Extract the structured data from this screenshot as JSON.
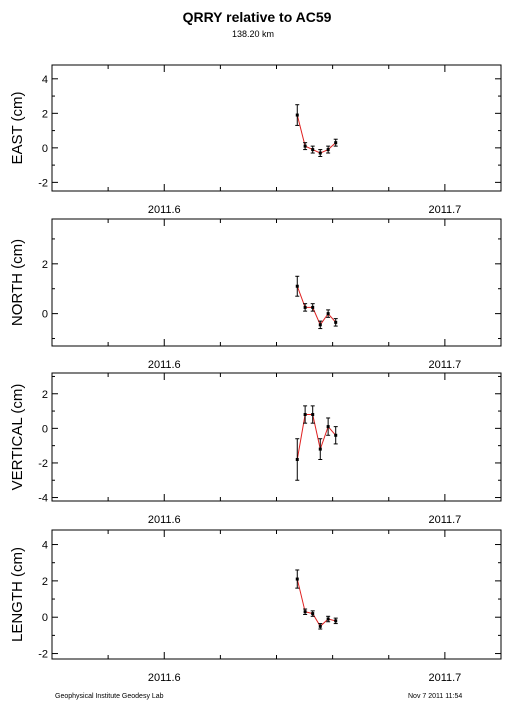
{
  "title": "QRRY relative to AC59",
  "subtitle": "138.20 km",
  "footer": {
    "left": "Geophysical Institute Geodesy Lab",
    "right": "Nov 7 2011 11:54"
  },
  "chart_data": [
    {
      "type": "line",
      "name": "east",
      "ylabel": "EAST (cm)",
      "xlim": [
        2011.56,
        2011.72
      ],
      "ylim": [
        -2.5,
        4.8
      ],
      "yticks": [
        -2,
        0,
        2,
        4
      ],
      "xticks": [
        2011.6,
        2011.7
      ],
      "xtick_labels": [
        "2011.6",
        "2011.7"
      ],
      "series": [
        {
          "x": [
            2011.6474,
            2011.6502,
            2011.6529,
            2011.6556,
            2011.6584,
            2011.6611
          ],
          "y": [
            1.9,
            0.1,
            -0.1,
            -0.3,
            -0.1,
            0.3
          ],
          "err": [
            0.6,
            0.2,
            0.2,
            0.2,
            0.2,
            0.2
          ]
        }
      ]
    },
    {
      "type": "line",
      "name": "north",
      "ylabel": "NORTH (cm)",
      "xlim": [
        2011.56,
        2011.72
      ],
      "ylim": [
        -1.3,
        3.8
      ],
      "yticks": [
        0,
        2
      ],
      "xticks": [
        2011.6,
        2011.7
      ],
      "xtick_labels": [
        "2011.6",
        "2011.7"
      ],
      "series": [
        {
          "x": [
            2011.6474,
            2011.6502,
            2011.6529,
            2011.6556,
            2011.6584,
            2011.6611
          ],
          "y": [
            1.1,
            0.25,
            0.25,
            -0.45,
            0.0,
            -0.35
          ],
          "err": [
            0.4,
            0.15,
            0.15,
            0.15,
            0.15,
            0.15
          ]
        }
      ]
    },
    {
      "type": "line",
      "name": "vertical",
      "ylabel": "VERTICAL (cm)",
      "xlim": [
        2011.56,
        2011.72
      ],
      "ylim": [
        -4.2,
        3.2
      ],
      "yticks": [
        -4,
        -2,
        0,
        2
      ],
      "xticks": [
        2011.6,
        2011.7
      ],
      "xtick_labels": [
        "2011.6",
        "2011.7"
      ],
      "series": [
        {
          "x": [
            2011.6474,
            2011.6502,
            2011.6529,
            2011.6556,
            2011.6584,
            2011.6611
          ],
          "y": [
            -1.8,
            0.8,
            0.8,
            -1.2,
            0.1,
            -0.4
          ],
          "err": [
            1.2,
            0.5,
            0.5,
            0.6,
            0.5,
            0.5
          ]
        }
      ]
    },
    {
      "type": "line",
      "name": "length",
      "ylabel": "LENGTH (cm)",
      "xlim": [
        2011.56,
        2011.72
      ],
      "ylim": [
        -2.3,
        4.8
      ],
      "yticks": [
        -2,
        0,
        2,
        4
      ],
      "xticks": [
        2011.6,
        2011.7
      ],
      "xtick_labels": [
        "2011.6",
        "2011.7"
      ],
      "series": [
        {
          "x": [
            2011.6474,
            2011.6502,
            2011.6529,
            2011.6556,
            2011.6584,
            2011.6611
          ],
          "y": [
            2.1,
            0.3,
            0.2,
            -0.5,
            -0.1,
            -0.2
          ],
          "err": [
            0.5,
            0.15,
            0.15,
            0.15,
            0.15,
            0.15
          ]
        }
      ]
    }
  ],
  "colors": {
    "line": "#e02020",
    "marker": "#000000",
    "axis": "#000000"
  }
}
